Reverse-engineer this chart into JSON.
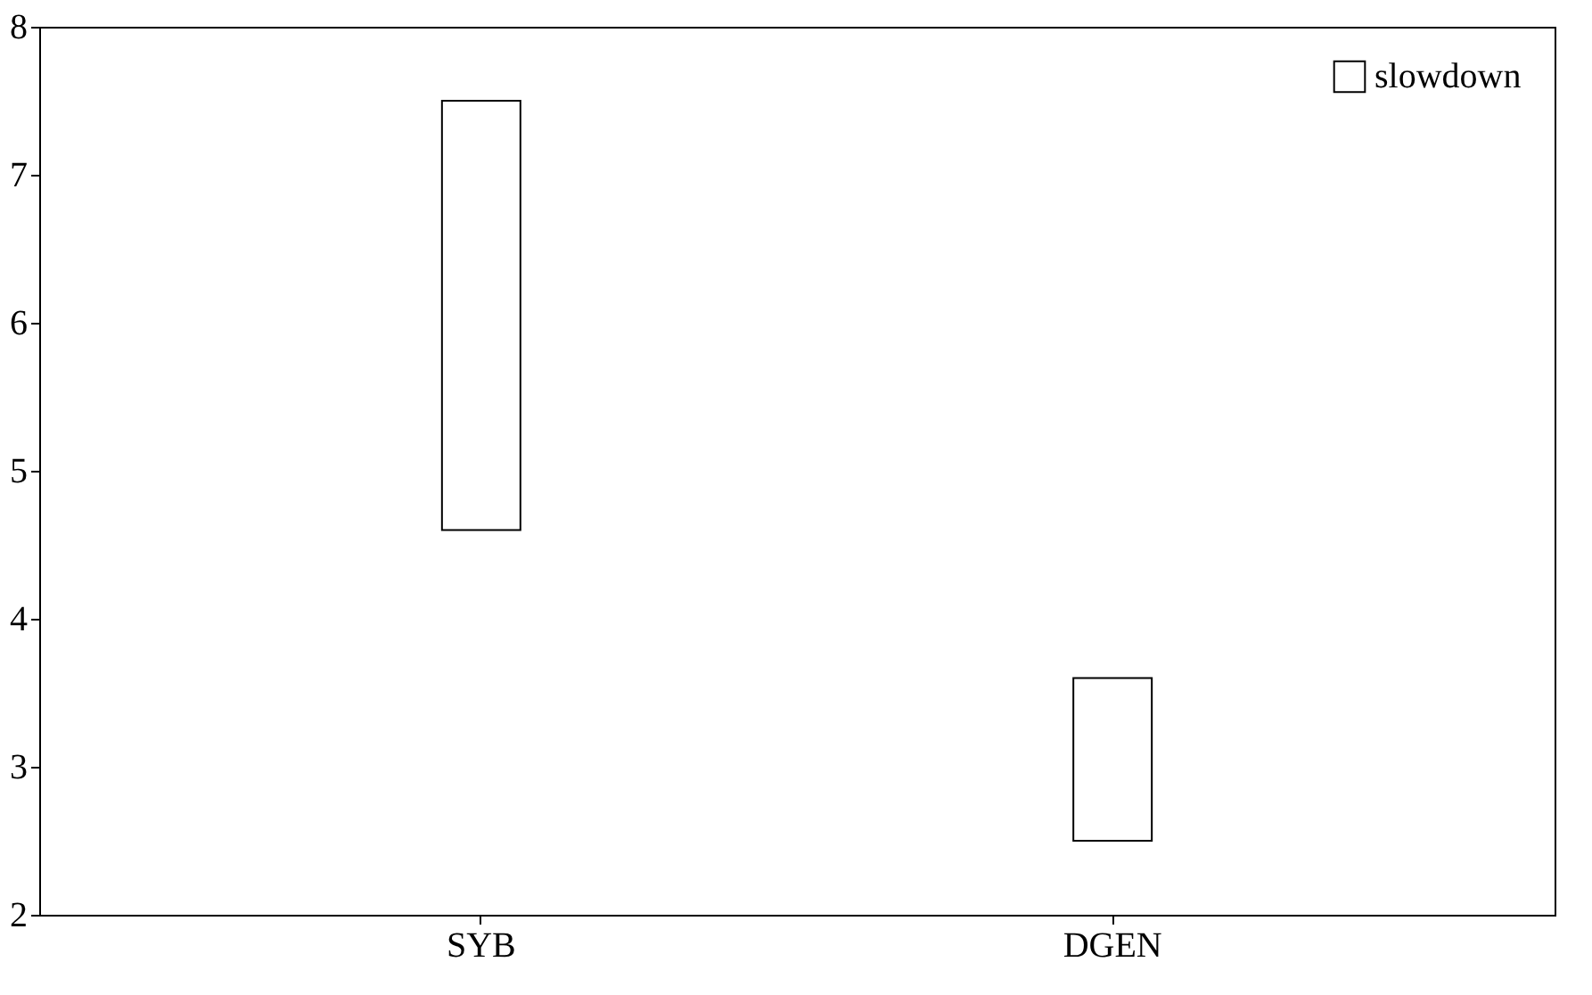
{
  "chart_data": {
    "type": "bar",
    "categories": [
      "SYB",
      "DGEN"
    ],
    "series": [
      {
        "name": "slowdown",
        "color": "#ffffff",
        "values": [
          2.9,
          1.1
        ],
        "base": [
          4.6,
          2.5
        ]
      }
    ],
    "ylim": [
      2,
      8
    ],
    "yticks": [
      2,
      3,
      4,
      5,
      6,
      7,
      8
    ],
    "grid": false,
    "legend": "top right"
  }
}
